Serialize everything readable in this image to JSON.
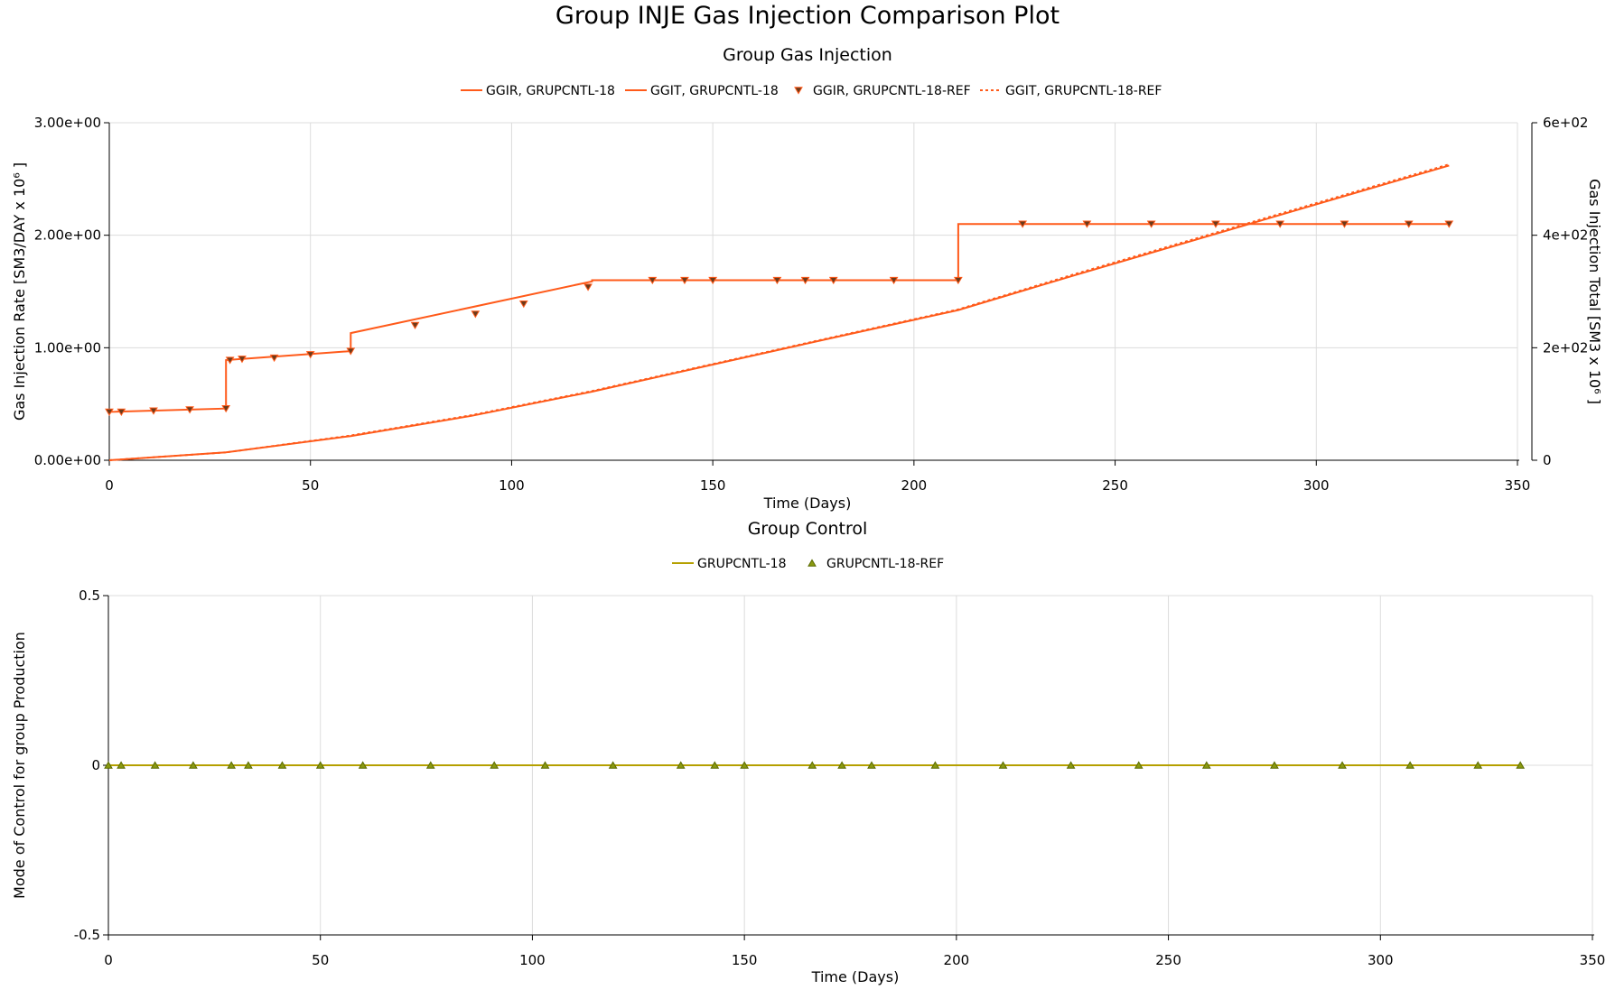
{
  "title": "Group INJE Gas Injection Comparison Plot",
  "chart_data": [
    {
      "type": "line",
      "title": "Group Gas Injection",
      "xlabel": "Time (Days)",
      "ylabel": "Gas Injection Rate [SM3/DAY x 10⁶ ]",
      "y2label": "Gas Injection Total [SM3 x 10⁶ ]",
      "xlim": [
        0,
        350
      ],
      "ylim": [
        0,
        3
      ],
      "y2lim": [
        0,
        600
      ],
      "xticks": [
        "0",
        "50",
        "100",
        "150",
        "200",
        "250",
        "300",
        "350"
      ],
      "yticks": [
        "0.00e+00",
        "1.00e+00",
        "2.00e+00",
        "3.00e+00"
      ],
      "y2ticks": [
        "0",
        "2e+02",
        "4e+02",
        "6e+02"
      ],
      "grid": true,
      "legend_position": "top",
      "colors": {
        "rate": "#ff5a1a",
        "total": "#ff5a1a",
        "marker_fill": "#6b3a1a"
      },
      "series": [
        {
          "name": "GGIR, GRUPCNTL-18",
          "axis": "left",
          "style": "step",
          "x": [
            0,
            29,
            29,
            60,
            60,
            120,
            120,
            211,
            211,
            333
          ],
          "y": [
            0.43,
            0.46,
            0.89,
            0.97,
            1.13,
            1.59,
            1.6,
            1.6,
            2.1,
            2.1
          ]
        },
        {
          "name": "GGIT, GRUPCNTL-18",
          "axis": "right",
          "style": "solid",
          "x": [
            0,
            29,
            60,
            90,
            120,
            150,
            180,
            211,
            240,
            270,
            300,
            333
          ],
          "y": [
            0,
            14,
            43,
            79,
            122,
            170,
            218,
            267,
            329,
            392,
            455,
            524
          ]
        },
        {
          "name": "GGIR, GRUPCNTL-18-REF",
          "axis": "left",
          "style": "markers",
          "marker": "triangle-down",
          "x": [
            0,
            3,
            11,
            20,
            29,
            30,
            33,
            41,
            50,
            60,
            76,
            91,
            103,
            119,
            135,
            143,
            150,
            166,
            173,
            180,
            195,
            211,
            227,
            243,
            259,
            275,
            291,
            307,
            323,
            333
          ],
          "y": [
            0.43,
            0.43,
            0.44,
            0.45,
            0.46,
            0.89,
            0.9,
            0.91,
            0.94,
            0.97,
            1.2,
            1.3,
            1.39,
            1.54,
            1.6,
            1.6,
            1.6,
            1.6,
            1.6,
            1.6,
            1.6,
            1.6,
            2.1,
            2.1,
            2.1,
            2.1,
            2.1,
            2.1,
            2.1,
            2.1
          ]
        },
        {
          "name": "GGIT, GRUPCNTL-18-REF",
          "axis": "right",
          "style": "dotted",
          "x": [
            0,
            29,
            60,
            90,
            120,
            150,
            180,
            211,
            240,
            270,
            300,
            333
          ],
          "y": [
            0,
            14,
            44,
            80,
            123,
            171,
            219,
            268,
            331,
            394,
            457,
            526
          ]
        }
      ]
    },
    {
      "type": "line",
      "title": "Group Control",
      "xlabel": "Time (Days)",
      "ylabel": "Mode of Control for group Production",
      "xlim": [
        0,
        350
      ],
      "ylim": [
        -0.5,
        0.5
      ],
      "xticks": [
        "0",
        "50",
        "100",
        "150",
        "200",
        "250",
        "300",
        "350"
      ],
      "yticks": [
        "-0.5",
        "0",
        "0.5"
      ],
      "grid": true,
      "legend_position": "top",
      "colors": {
        "line": "#b5a000",
        "marker_fill": "#8a9a10"
      },
      "series": [
        {
          "name": "GRUPCNTL-18",
          "style": "solid",
          "x": [
            0,
            333
          ],
          "y": [
            0,
            0
          ]
        },
        {
          "name": "GRUPCNTL-18-REF",
          "style": "markers",
          "marker": "triangle-up",
          "x": [
            0,
            3,
            11,
            20,
            29,
            33,
            41,
            50,
            60,
            76,
            91,
            103,
            119,
            135,
            143,
            150,
            166,
            173,
            180,
            195,
            211,
            227,
            243,
            259,
            275,
            291,
            307,
            323,
            333
          ],
          "y": [
            0,
            0,
            0,
            0,
            0,
            0,
            0,
            0,
            0,
            0,
            0,
            0,
            0,
            0,
            0,
            0,
            0,
            0,
            0,
            0,
            0,
            0,
            0,
            0,
            0,
            0,
            0,
            0,
            0
          ]
        }
      ]
    }
  ]
}
